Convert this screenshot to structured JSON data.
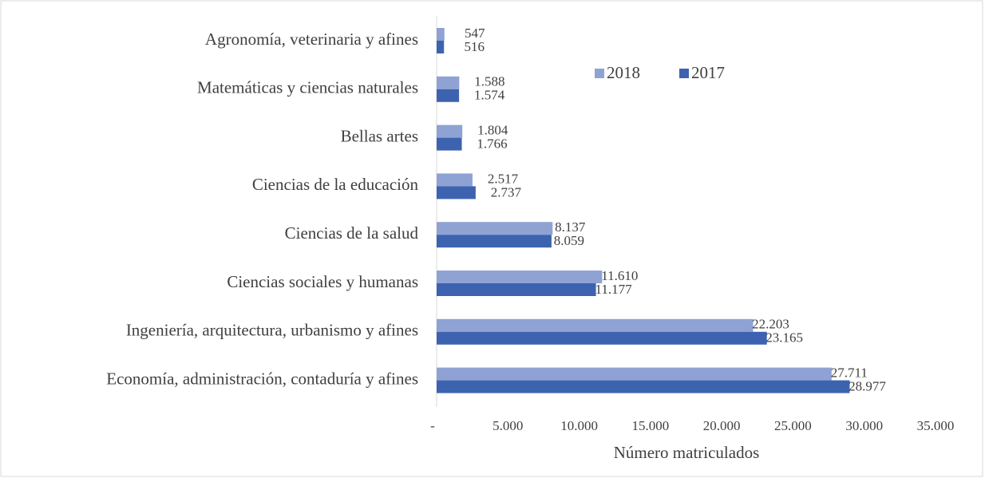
{
  "chart_data": {
    "type": "hbar",
    "categories": [
      "Agronomía, veterinaria y afines",
      "Matemáticas y ciencias naturales",
      "Bellas artes",
      "Ciencias de la educación",
      "Ciencias de la salud",
      "Ciencias sociales y humanas",
      "Ingeniería, arquitectura, urbanismo y afines",
      "Economía, administración, contaduría y afines"
    ],
    "series": [
      {
        "name": "2018",
        "color": "#8fa2d4",
        "values": [
          547,
          1588,
          1804,
          2517,
          8137,
          11610,
          22203,
          27711
        ],
        "value_labels": [
          "547",
          "1.588",
          "1.804",
          "2.517",
          "8.137",
          "11.610",
          "22.203",
          "27.711"
        ]
      },
      {
        "name": "2017",
        "color": "#3d63b0",
        "values": [
          516,
          1574,
          1766,
          2737,
          8059,
          11177,
          23165,
          28977
        ],
        "value_labels": [
          "516",
          "1.574",
          "1.766",
          "2.737",
          "8.059",
          "11.177",
          "23.165",
          "28.977"
        ]
      }
    ],
    "xlim": [
      0,
      35000
    ],
    "xticks": [
      {
        "value": 0,
        "label": "-"
      },
      {
        "value": 5000,
        "label": "5.000"
      },
      {
        "value": 10000,
        "label": "10.000"
      },
      {
        "value": 15000,
        "label": "15.000"
      },
      {
        "value": 20000,
        "label": "20.000"
      },
      {
        "value": 25000,
        "label": "25.000"
      },
      {
        "value": 30000,
        "label": "30.000"
      },
      {
        "value": 35000,
        "label": "35.000"
      }
    ],
    "xlabel": "Número matriculados",
    "legend": "top-right"
  }
}
